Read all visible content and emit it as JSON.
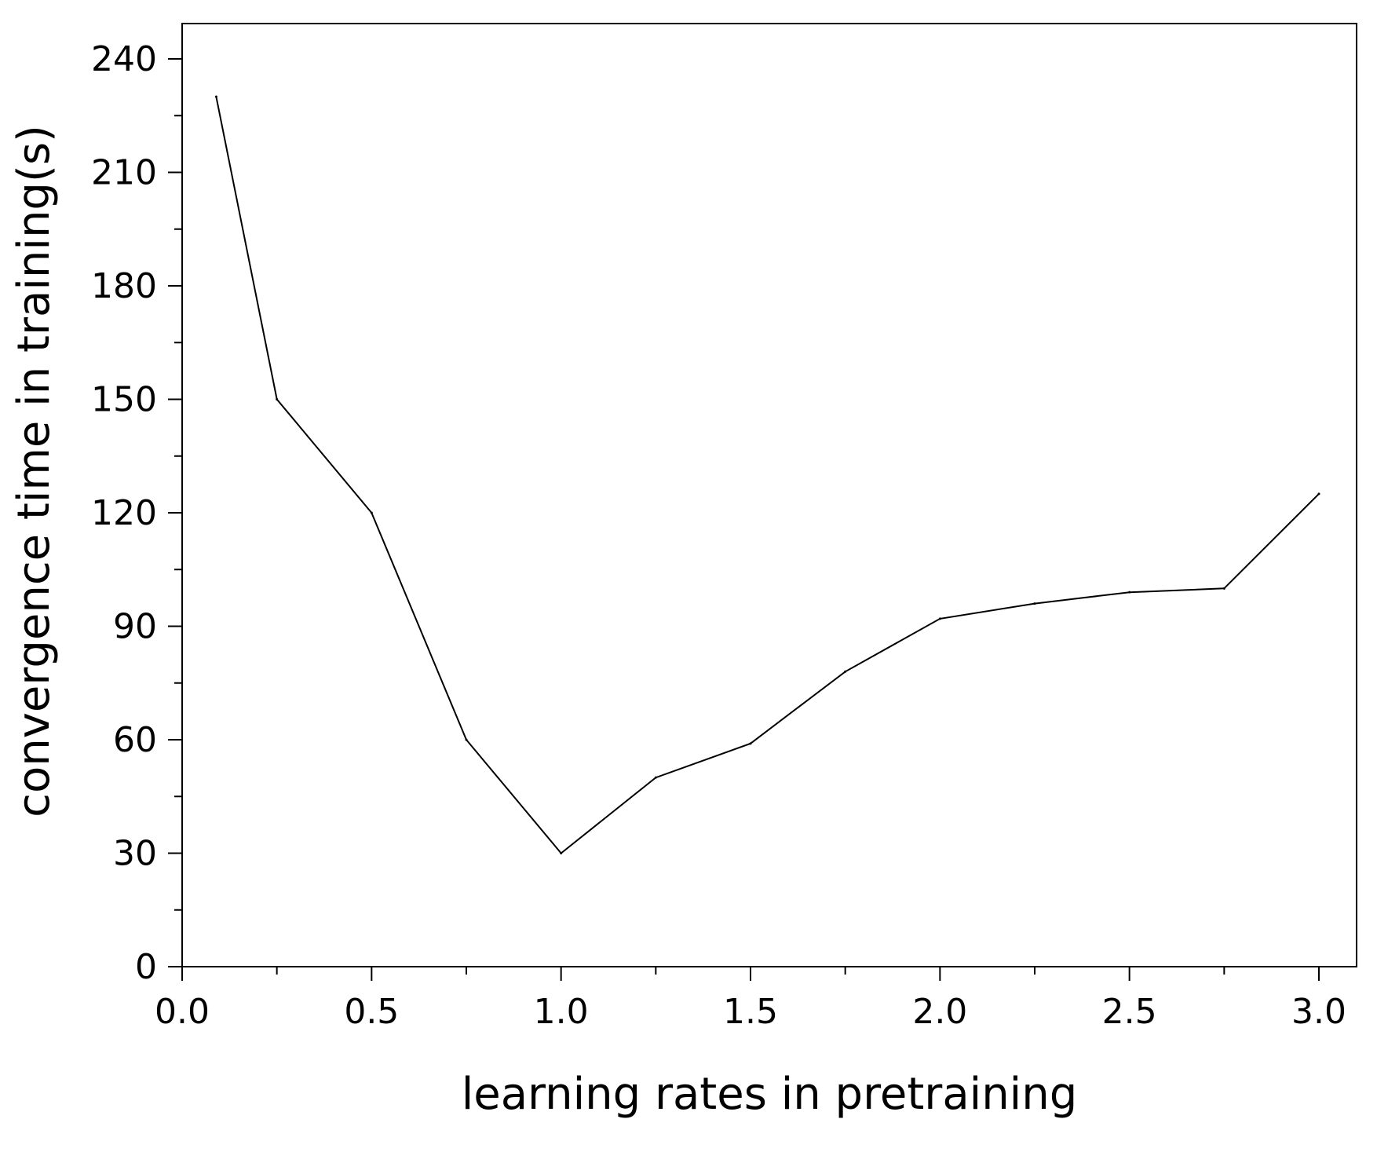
{
  "chart_data": {
    "type": "line",
    "title": "",
    "xlabel": "learning rates in pretraining",
    "ylabel": "convergence time in training(s)",
    "xlim": [
      0.0,
      3.1
    ],
    "ylim": [
      0,
      250
    ],
    "x_ticks": [
      0.0,
      0.5,
      1.0,
      1.5,
      2.0,
      2.5,
      3.0
    ],
    "x_tick_labels": [
      "0.0",
      "0.5",
      "1.0",
      "1.5",
      "2.0",
      "2.5",
      "3.0"
    ],
    "x_minor_ticks": [
      0.25,
      0.75,
      1.25,
      1.75,
      2.25,
      2.75
    ],
    "y_ticks": [
      0,
      30,
      60,
      90,
      120,
      150,
      180,
      210,
      240
    ],
    "y_tick_labels": [
      "0",
      "30",
      "60",
      "90",
      "120",
      "150",
      "180",
      "210",
      "240"
    ],
    "y_minor_ticks": [
      15,
      45,
      75,
      105,
      135,
      165,
      195,
      225
    ],
    "grid": false,
    "legend": "none",
    "series": [
      {
        "color": "#000000",
        "x": [
          0.09,
          0.25,
          0.5,
          0.75,
          1.0,
          1.25,
          1.5,
          1.75,
          2.0,
          2.25,
          2.5,
          2.75,
          3.0
        ],
        "y": [
          230,
          150,
          120,
          60,
          30,
          50,
          59,
          78,
          92,
          96,
          99,
          100,
          125
        ]
      }
    ]
  }
}
